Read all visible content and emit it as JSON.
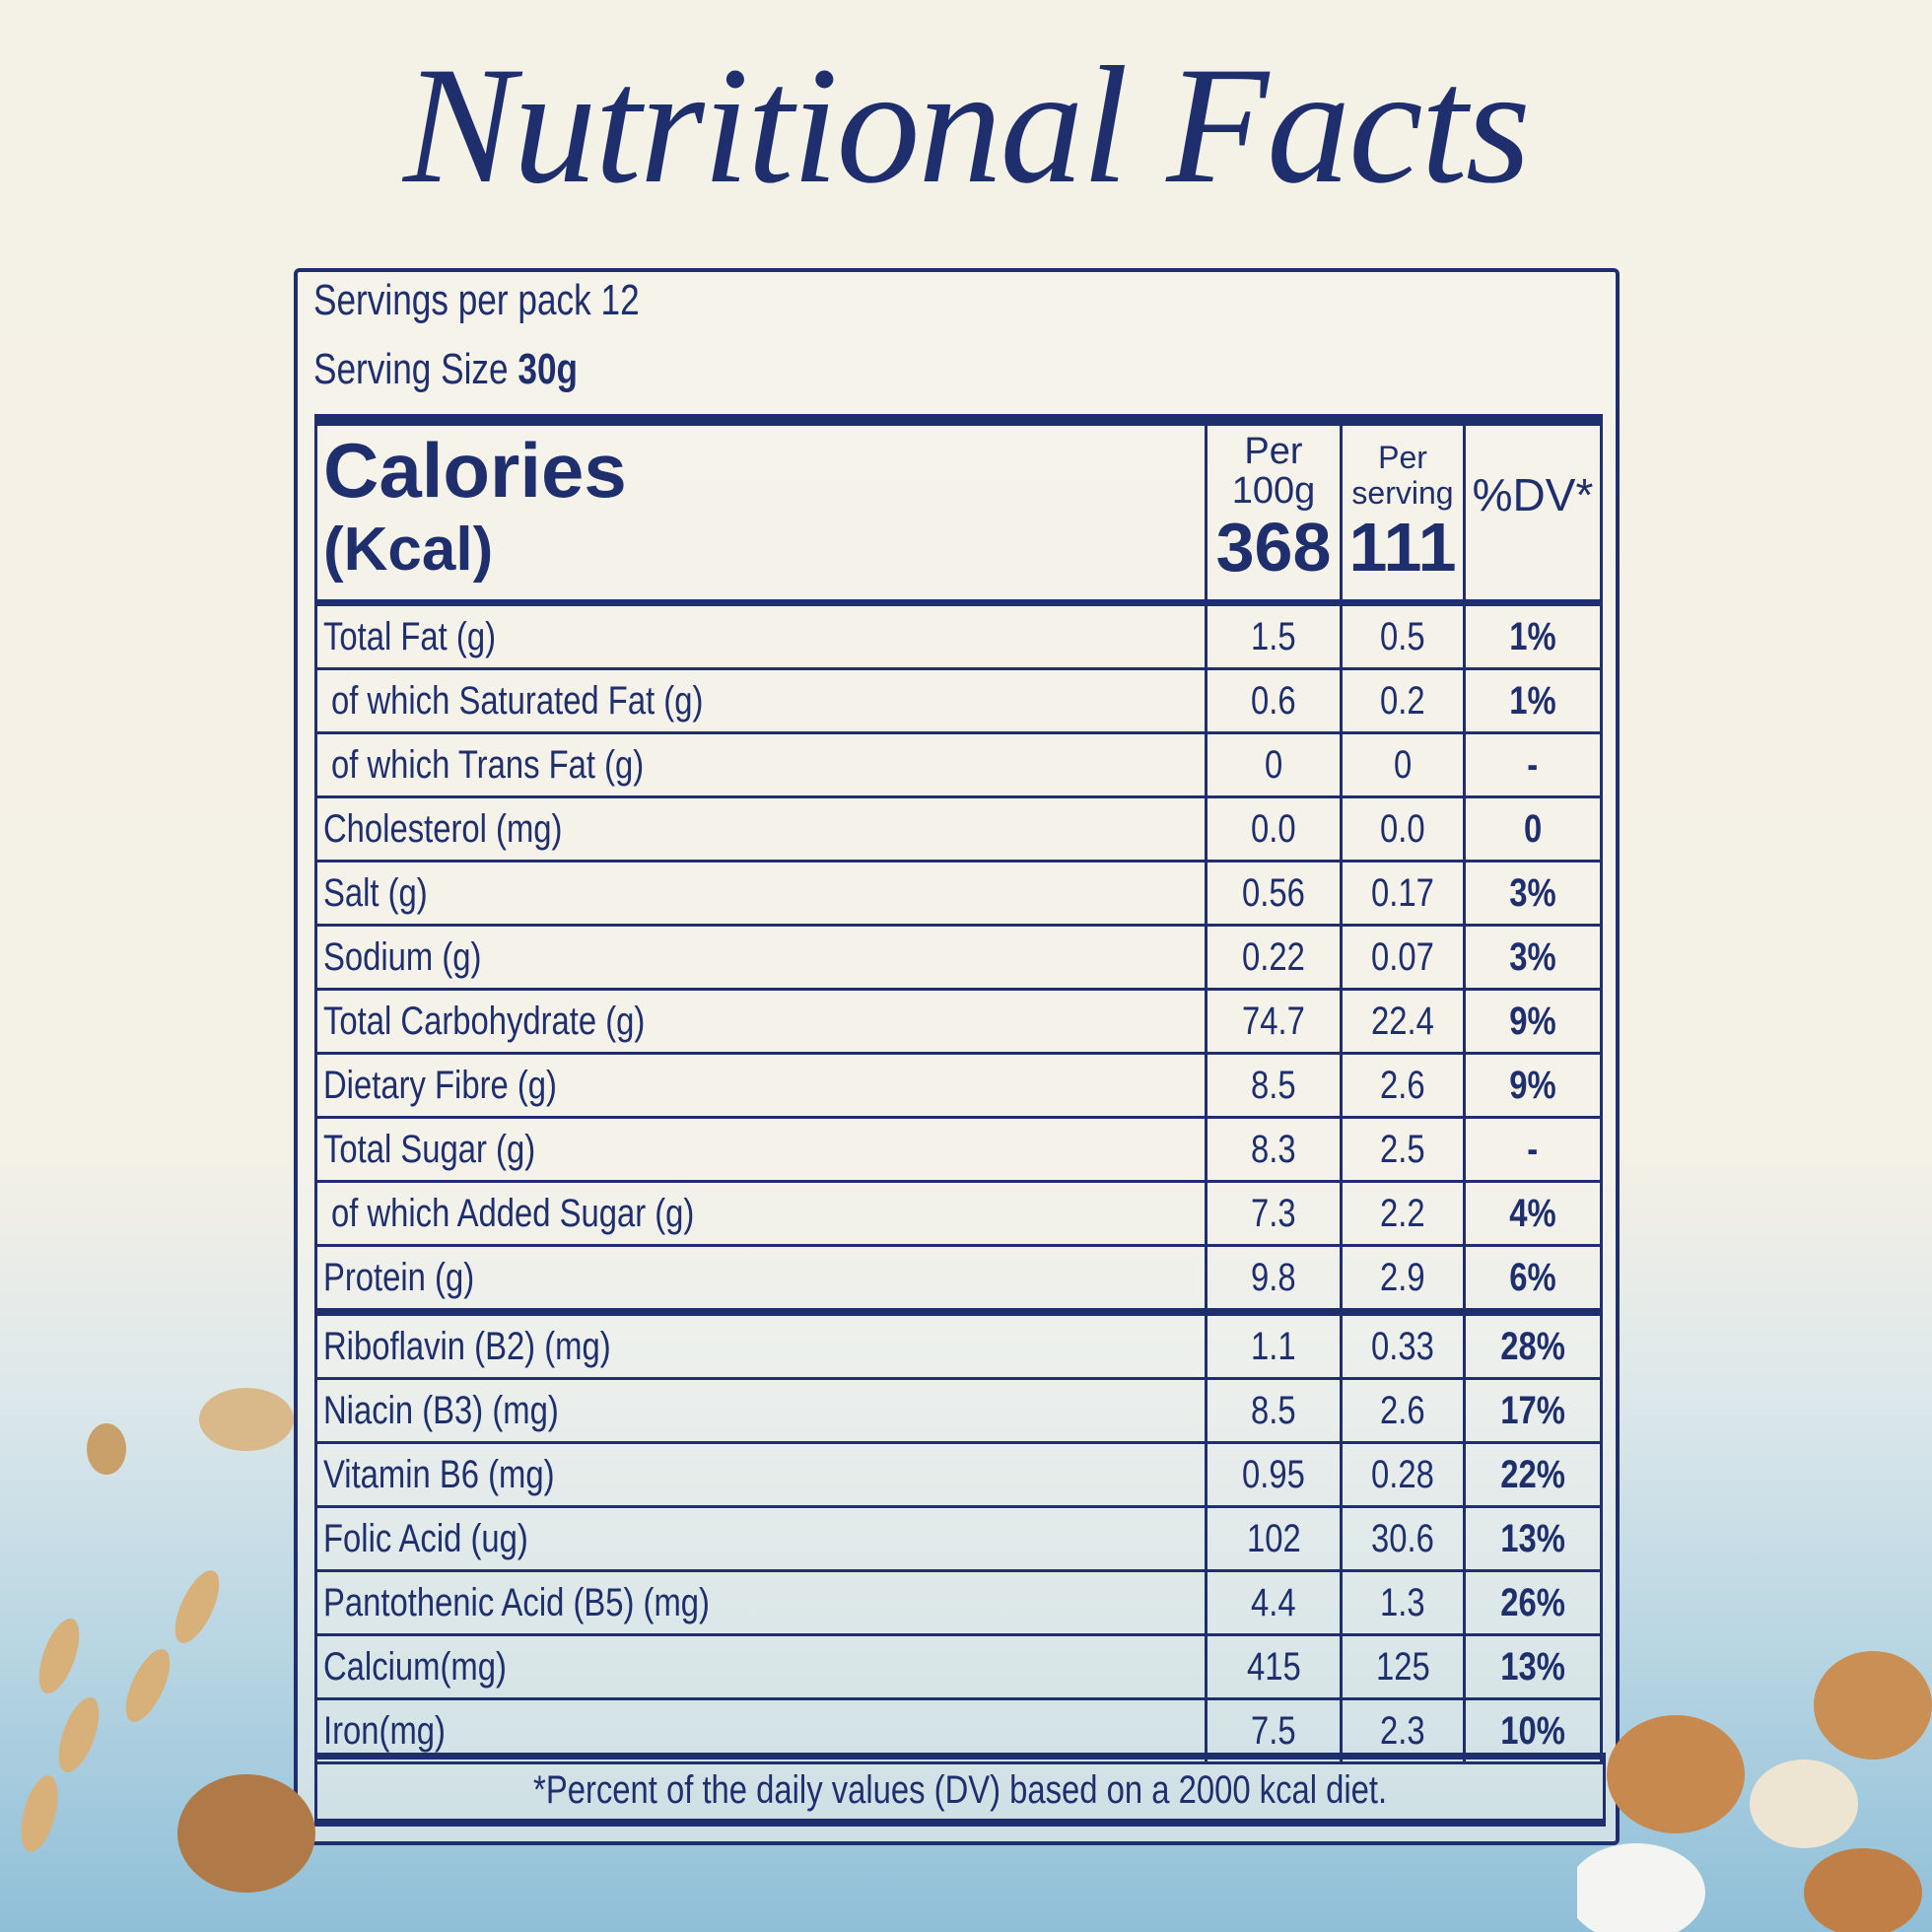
{
  "title": "Nutritional Facts",
  "servings": {
    "label": "Servings per pack",
    "value": "12"
  },
  "serving_size": {
    "label": "Serving Size",
    "value": "30g"
  },
  "table": {
    "header": {
      "label": "Calories",
      "unit": "(Kcal)",
      "per_100g": "Per 100g",
      "per_serving": "Per serving",
      "dv": "%DV*",
      "calories_100g": "368",
      "calories_serving": "111"
    },
    "rows": [
      [
        "Total Fat (g)",
        "1.5",
        "0.5",
        "1%"
      ],
      [
        "of which Saturated Fat (g)",
        "0.6",
        "0.2",
        "1%"
      ],
      [
        "of which Trans Fat (g)",
        "0",
        "0",
        "-"
      ],
      [
        "Cholesterol (mg)",
        "0.0",
        "0.0",
        "0"
      ],
      [
        "Salt (g)",
        "0.56",
        "0.17",
        "3%"
      ],
      [
        "Sodium (g)",
        "0.22",
        "0.07",
        "3%"
      ],
      [
        "Total Carbohydrate (g)",
        "74.7",
        "22.4",
        "9%"
      ],
      [
        "Dietary Fibre (g)",
        "8.5",
        "2.6",
        "9%"
      ],
      [
        "Total Sugar (g)",
        "8.3",
        "2.5",
        "-"
      ],
      [
        "of which Added Sugar (g)",
        "7.3",
        "2.2",
        "4%"
      ],
      [
        "Protein (g)",
        "9.8",
        "2.9",
        "6%"
      ],
      [
        "Riboflavin (B2) (mg)",
        "1.1",
        "0.33",
        "28%"
      ],
      [
        "Niacin (B3) (mg)",
        "8.5",
        "2.6",
        "17%"
      ],
      [
        "Vitamin B6 (mg)",
        "0.95",
        "0.28",
        "22%"
      ],
      [
        "Folic Acid (ug)",
        "102",
        "30.6",
        "13%"
      ],
      [
        "Pantothenic Acid (B5) (mg)",
        "4.4",
        "1.3",
        "26%"
      ],
      [
        "Calcium(mg)",
        "415",
        "125",
        "13%"
      ],
      [
        "Iron(mg)",
        "7.5",
        "2.3",
        "10%"
      ]
    ],
    "footnote": "*Percent of the daily values (DV) based on a 2000 kcal diet."
  }
}
